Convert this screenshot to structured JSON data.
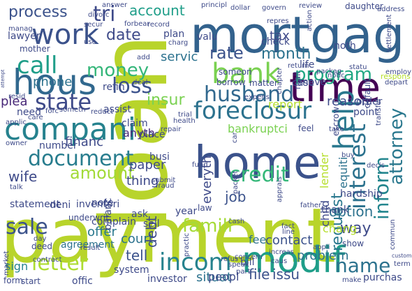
{
  "word_cloud": {
    "background": "#ffffff",
    "words": [
      {
        "text": "payment",
        "color": "#b8d42b"
      },
      {
        "text": "loan",
        "color": "#b8d42b"
      },
      {
        "text": "home",
        "color": "#3b528b"
      },
      {
        "text": "mortgag",
        "color": "#33628d"
      },
      {
        "text": "modif",
        "color": "#1f9e89"
      },
      {
        "text": "time",
        "color": "#440154"
      },
      {
        "text": "hous",
        "color": "#31688e"
      },
      {
        "text": "compani",
        "color": "#26828e"
      },
      {
        "text": "foreclosur",
        "color": "#2c728e"
      },
      {
        "text": "bank",
        "color": "#7ad151"
      },
      {
        "text": "work",
        "color": "#3b528b"
      },
      {
        "text": "document",
        "color": "#287d8e"
      },
      {
        "text": "husband",
        "color": "#31688e"
      },
      {
        "text": "incom",
        "color": "#26828e"
      },
      {
        "text": "letter",
        "color": "#addc30"
      },
      {
        "text": "help",
        "color": "#2a788e"
      },
      {
        "text": "interest",
        "color": "#2c728e"
      },
      {
        "text": "inform",
        "color": "#24868e"
      },
      {
        "text": "attorney",
        "color": "#2a788e"
      },
      {
        "text": "state",
        "color": "#3e4a89"
      },
      {
        "text": "call",
        "color": "#1f9e89"
      },
      {
        "text": "money",
        "color": "#34b679"
      },
      {
        "text": "credit",
        "color": "#35b779"
      },
      {
        "text": "sale",
        "color": "#3b528b"
      },
      {
        "text": "amount",
        "color": "#a2da37"
      },
      {
        "text": "loss",
        "color": "#3b528b"
      },
      {
        "text": "rate",
        "color": "#3b528b"
      },
      {
        "text": "month",
        "color": "#2c728e"
      },
      {
        "text": "program",
        "color": "#22a884"
      },
      {
        "text": "process",
        "color": "#3b528b"
      },
      {
        "text": "famili",
        "color": "#a5db36"
      },
      {
        "text": "name",
        "color": "#2c728e"
      },
      {
        "text": "job",
        "color": "#3b528b"
      },
      {
        "text": "date",
        "color": "#3e4a89"
      },
      {
        "text": "insur",
        "color": "#7ad151"
      },
      {
        "text": "financ",
        "color": "#3e4a89"
      },
      {
        "text": "account",
        "color": "#1f9e89"
      },
      {
        "text": "tri",
        "color": "#3e4a89"
      },
      {
        "text": "tax",
        "color": "#3e4a89"
      },
      {
        "text": "lender",
        "color": "#b5de2b"
      },
      {
        "text": "court",
        "color": "#2c728e"
      },
      {
        "text": "tell",
        "color": "#3b528b"
      },
      {
        "text": "paper",
        "color": "#3e4a89"
      },
      {
        "text": "thing",
        "color": "#3e4a89"
      },
      {
        "text": "contact",
        "color": "#3b528b"
      },
      {
        "text": "file",
        "color": "#3b528b"
      },
      {
        "text": "issu",
        "color": "#3b528b"
      },
      {
        "text": "problem",
        "color": "#2c728e"
      },
      {
        "text": "request",
        "color": "#2a788e"
      },
      {
        "text": "way",
        "color": "#3e4a89"
      },
      {
        "text": "report",
        "color": "#b5de2b"
      },
      {
        "text": "reason",
        "color": "#3e4a89"
      },
      {
        "text": "bankruptci",
        "color": "#7ad151"
      },
      {
        "text": "plea",
        "color": "#482878"
      },
      {
        "text": "assist",
        "color": "#3e4a89"
      },
      {
        "text": "refin",
        "color": "#3e4a89"
      },
      {
        "text": "phone",
        "color": "#2c728e"
      },
      {
        "text": "sign",
        "color": "#26828e"
      },
      {
        "text": "wife",
        "color": "#3e4a89"
      },
      {
        "text": "statement",
        "color": "#3e4a89"
      },
      {
        "text": "offer",
        "color": "#2a788e"
      },
      {
        "text": "situat",
        "color": "#2c728e"
      },
      {
        "text": "peopl",
        "color": "#3e4a89"
      },
      {
        "text": "equiti",
        "color": "#2c728e"
      },
      {
        "text": "option",
        "color": "#2c728e"
      },
      {
        "text": "servic",
        "color": "#2c728e"
      },
      {
        "text": "everyth",
        "color": "#3e4a89"
      },
      {
        "text": "debt",
        "color": "#3e4a89"
      },
      {
        "text": "agreement",
        "color": "#2c728e"
      },
      {
        "text": "fee",
        "color": "#2c728e"
      },
      {
        "text": "sell",
        "color": "#3e4a89"
      },
      {
        "text": "bill",
        "color": "#3e4a89"
      },
      {
        "text": "deni",
        "color": "#3e4a89"
      },
      {
        "text": "inventori",
        "color": "#3e4a89"
      },
      {
        "text": "need",
        "color": "#3e4a89"
      },
      {
        "text": "number",
        "color": "#3e4a89"
      },
      {
        "text": "anyth",
        "color": "#482878"
      },
      {
        "text": "noth",
        "color": "#3e4a89"
      },
      {
        "text": "life",
        "color": "#3e4a89"
      },
      {
        "text": "check",
        "color": "#3e4a89"
      },
      {
        "text": "valu",
        "color": "#3e4a89"
      },
      {
        "text": "plan",
        "color": "#3e4a89"
      },
      {
        "text": "lawyer",
        "color": "#3e4a89"
      },
      {
        "text": "mother",
        "color": "#3e4a89"
      },
      {
        "text": "case",
        "color": "#3e4a89"
      },
      {
        "text": "order",
        "color": "#3e4a89"
      },
      {
        "text": "point",
        "color": "#3e4a89"
      },
      {
        "text": "thank",
        "color": "#3e4a89"
      },
      {
        "text": "hardship",
        "color": "#3e4a89"
      },
      {
        "text": "chang",
        "color": "#b5de2b"
      },
      {
        "text": "purchas",
        "color": "#3e4a89"
      },
      {
        "text": "system",
        "color": "#3e4a89"
      },
      {
        "text": "investor",
        "color": "#3e4a89"
      },
      {
        "text": "offic",
        "color": "#3e4a89"
      },
      {
        "text": "start",
        "color": "#3e4a89"
      },
      {
        "text": "form",
        "color": "#3e4a89"
      },
      {
        "text": "place",
        "color": "#3e4a89"
      },
      {
        "text": "claim",
        "color": "#3e4a89"
      },
      {
        "text": "busi",
        "color": "#3e4a89"
      },
      {
        "text": "law",
        "color": "#3e4a89"
      },
      {
        "text": "ask",
        "color": "#3e4a89"
      },
      {
        "text": "year",
        "color": "#3e4a89"
      },
      {
        "text": "note",
        "color": "#3e4a89"
      },
      {
        "text": "complain",
        "color": "#3e4a89"
      },
      {
        "text": "balanc",
        "color": "#3e4a89"
      },
      {
        "text": "underwrit",
        "color": "#3e4a89"
      },
      {
        "text": "deed",
        "color": "#3e4a89"
      },
      {
        "text": "day",
        "color": "#3e4a89"
      },
      {
        "text": "child",
        "color": "#3e4a89"
      },
      {
        "text": "show",
        "color": "#3e4a89"
      },
      {
        "text": "move",
        "color": "#3e4a89"
      },
      {
        "text": "mail",
        "color": "#3e4a89"
      },
      {
        "text": "someon",
        "color": "#3e4a89"
      },
      {
        "text": "borrow",
        "color": "#3e4a89"
      },
      {
        "text": "matter",
        "color": "#3e4a89"
      },
      {
        "text": "feel",
        "color": "#3e4a89"
      },
      {
        "text": "take",
        "color": "#3e4a89"
      },
      {
        "text": "escrow",
        "color": "#3e4a89"
      },
      {
        "text": "buy",
        "color": "#3e4a89"
      },
      {
        "text": "decis",
        "color": "#3e4a89"
      },
      {
        "text": "transfer",
        "color": "#3e4a89"
      },
      {
        "text": "default",
        "color": "#3e4a89"
      },
      {
        "text": "respons",
        "color": "#b5de2b"
      },
      {
        "text": "address",
        "color": "#3e4a89"
      },
      {
        "text": "settlement",
        "color": "#3e4a89"
      },
      {
        "text": "employ",
        "color": "#3e4a89"
      },
      {
        "text": "depart",
        "color": "#3e4a89"
      },
      {
        "text": "daughter",
        "color": "#3e4a89"
      },
      {
        "text": "review",
        "color": "#3e4a89"
      },
      {
        "text": "govern",
        "color": "#3e4a89"
      },
      {
        "text": "dollar",
        "color": "#3e4a89"
      },
      {
        "text": "principl",
        "color": "#3e4a89"
      },
      {
        "text": "answer",
        "color": "#3e4a89"
      },
      {
        "text": "divorc",
        "color": "#3e4a89"
      },
      {
        "text": "manag",
        "color": "#3e4a89"
      },
      {
        "text": "secur",
        "color": "#3e4a89"
      },
      {
        "text": "forbear",
        "color": "#3e4a89"
      },
      {
        "text": "record",
        "color": "#3e4a89"
      },
      {
        "text": "charg",
        "color": "#3e4a89"
      },
      {
        "text": "repres",
        "color": "#3e4a89"
      },
      {
        "text": "action",
        "color": "#3e4a89"
      },
      {
        "text": "return",
        "color": "#3e4a89"
      },
      {
        "text": "packag",
        "color": "#3e4a89"
      },
      {
        "text": "notic",
        "color": "#3e4a89"
      },
      {
        "text": "statu",
        "color": "#3e4a89"
      },
      {
        "text": "chapter",
        "color": "#3e4a89"
      },
      {
        "text": "expens",
        "color": "#3e4a89"
      },
      {
        "text": "health",
        "color": "#3e4a89"
      },
      {
        "text": "trial",
        "color": "#3e4a89"
      },
      {
        "text": "repair",
        "color": "#3e4a89"
      },
      {
        "text": "reduct",
        "color": "#3e4a89"
      },
      {
        "text": "forc",
        "color": "#3e4a89"
      },
      {
        "text": "someth",
        "color": "#3e4a89"
      },
      {
        "text": "resid",
        "color": "#3e4a89"
      },
      {
        "text": "applic",
        "color": "#3e4a89"
      },
      {
        "text": "owner",
        "color": "#3e4a89"
      },
      {
        "text": "care",
        "color": "#3e4a89"
      },
      {
        "text": "talk",
        "color": "#3e4a89"
      },
      {
        "text": "attempt",
        "color": "#3e4a89"
      },
      {
        "text": "market",
        "color": "#3e4a89"
      },
      {
        "text": "contract",
        "color": "#3e4a89"
      },
      {
        "text": "result",
        "color": "#3e4a89"
      },
      {
        "text": "practic",
        "color": "#3e4a89"
      },
      {
        "text": "fraud",
        "color": "#3e4a89"
      },
      {
        "text": "submit",
        "color": "#3e4a89"
      },
      {
        "text": "fund",
        "color": "#3e4a89"
      },
      {
        "text": "packet",
        "color": "#3e4a89"
      },
      {
        "text": "car",
        "color": "#3e4a89"
      },
      {
        "text": "refus",
        "color": "#3e4a89"
      },
      {
        "text": "concern",
        "color": "#3e4a89"
      },
      {
        "text": "cash",
        "color": "#3e4a89"
      },
      {
        "text": "apprais",
        "color": "#3e4a89"
      },
      {
        "text": "increas",
        "color": "#3e4a89"
      },
      {
        "text": "line",
        "color": "#3e4a89"
      },
      {
        "text": "speak",
        "color": "#3e4a89"
      },
      {
        "text": "caus",
        "color": "#3e4a89"
      },
      {
        "text": "part",
        "color": "#3e4a89"
      },
      {
        "text": "appli",
        "color": "#3e4a89"
      },
      {
        "text": "custom",
        "color": "#3e4a89"
      },
      {
        "text": "term",
        "color": "#3e4a89"
      },
      {
        "text": "make",
        "color": "#3e4a89"
      },
      {
        "text": "commun",
        "color": "#3e4a89"
      },
      {
        "text": "fact",
        "color": "#3e4a89"
      },
      {
        "text": "father",
        "color": "#3e4a89"
      },
      {
        "text": "add",
        "color": "#3e4a89"
      },
      {
        "text": "deal",
        "color": "#3e4a89"
      },
      {
        "text": "use",
        "color": "#3e4a89"
      }
    ]
  }
}
